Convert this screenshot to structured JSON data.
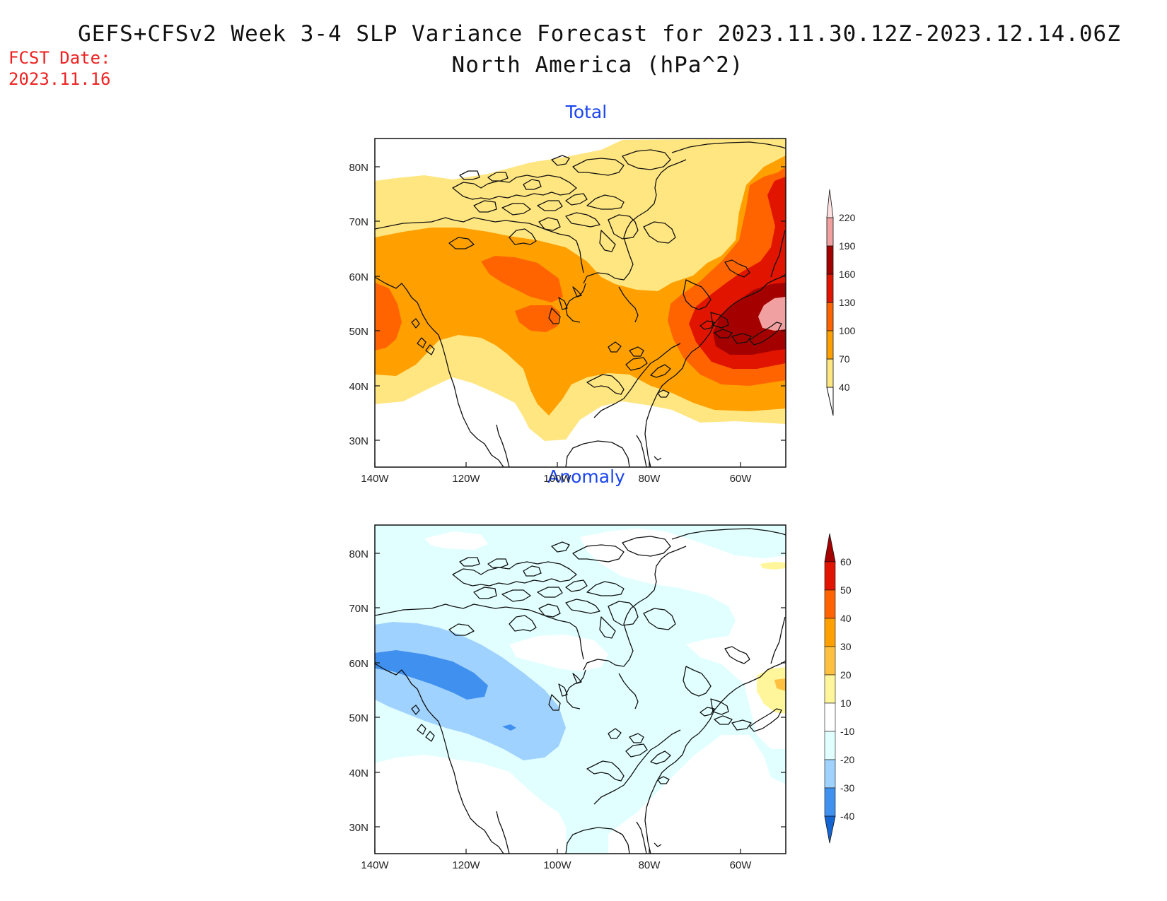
{
  "header": {
    "title_line1": "GEFS+CFSv2 Week 3-4 SLP Variance Forecast for 2023.11.30.12Z-2023.12.14.06Z",
    "title_line2": "North America (hPa^2)",
    "fcst_label": "FCST Date:",
    "fcst_date": "2023.11.16"
  },
  "map": {
    "lon_ticks": [
      "140W",
      "120W",
      "100W",
      "80W",
      "60W"
    ],
    "lat_ticks": [
      "80N",
      "70N",
      "60N",
      "50N",
      "40N",
      "30N"
    ],
    "lon_range": [
      -140,
      -50
    ],
    "lat_range": [
      25,
      85
    ]
  },
  "panels": [
    {
      "title": "Total",
      "colorbar": {
        "levels": [
          "40",
          "70",
          "100",
          "130",
          "160",
          "190",
          "220"
        ],
        "colors": [
          "#ffffff",
          "#ffe680",
          "#ffa000",
          "#ff6400",
          "#e11400",
          "#a50000",
          "#f0a0a0",
          "#fde0e0"
        ]
      }
    },
    {
      "title": "Anomaly",
      "colorbar": {
        "levels": [
          "60",
          "50",
          "40",
          "30",
          "20",
          "10",
          "-10",
          "-20",
          "-30",
          "-40"
        ],
        "colors": [
          "#a50000",
          "#e11400",
          "#ff6400",
          "#ffa000",
          "#ffc040",
          "#fff59a",
          "#ffffff",
          "#e1ffff",
          "#a0d2ff",
          "#4090f0",
          "#1464d2"
        ]
      }
    }
  ]
}
